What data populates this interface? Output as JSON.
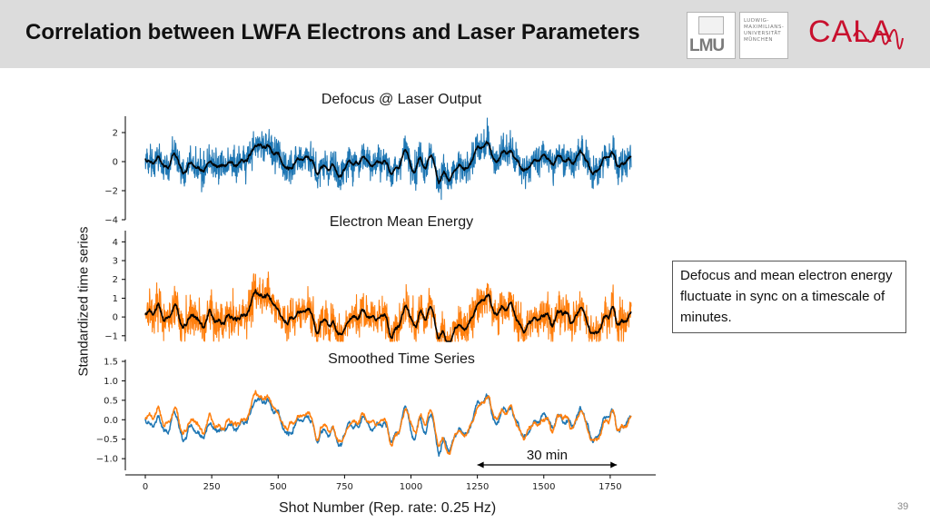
{
  "header": {
    "title": "Correlation between LWFA Electrons and Laser Parameters",
    "logo_lmu_text": "LMU",
    "logo_lmu_words": [
      "LUDWIG-",
      "MAXIMILIANS-",
      "UNIVERSITÄT",
      "MÜNCHEN"
    ],
    "logo_cala_text": "CALA",
    "background": "#dcdcdc"
  },
  "note": {
    "text": "Defocus and mean electron energy fluctuate in sync on a timescale of minutes."
  },
  "page_number": "39",
  "colors": {
    "blue": "#1f77b4",
    "orange": "#ff7f0e",
    "black": "#000000",
    "cala_red": "#c8102e"
  },
  "chart_data": [
    {
      "type": "line",
      "title": "Defocus @ Laser Output",
      "ylim": [
        -4,
        3
      ],
      "yticks": [
        2,
        0,
        -2,
        -4
      ],
      "ytick_labels": [
        "2",
        "0",
        "−2",
        "−4"
      ],
      "xlim": [
        0,
        1830
      ],
      "series": [
        {
          "role": "raw",
          "color": "#1f77b4",
          "mean": -0.2,
          "trend": 0.5,
          "amplitude": 1.6,
          "spread": 1.9
        },
        {
          "role": "smoothed",
          "color": "#000000"
        }
      ]
    },
    {
      "type": "line",
      "title": "Electron Mean Energy",
      "ylim": [
        -1.3,
        4.5
      ],
      "yticks": [
        4,
        3,
        2,
        1,
        0,
        -1
      ],
      "ytick_labels": [
        "4",
        "3",
        "2",
        "1",
        "0",
        "−1"
      ],
      "xlim": [
        0,
        1830
      ],
      "series": [
        {
          "role": "raw",
          "color": "#ff7f0e",
          "mean": 0.0,
          "trend": 0.1,
          "amplitude": 1.3,
          "spread": 1.5
        },
        {
          "role": "smoothed",
          "color": "#000000"
        }
      ]
    },
    {
      "type": "line",
      "title": "Smoothed Time Series",
      "ylim": [
        -1.3,
        1.5
      ],
      "yticks": [
        1.5,
        1.0,
        0.5,
        0.0,
        -0.5,
        -1.0
      ],
      "ytick_labels": [
        "1.5",
        "1.0",
        "0.5",
        "0.0",
        "−0.5",
        "−1.0"
      ],
      "xlim": [
        0,
        1830
      ],
      "xticks": [
        0,
        250,
        500,
        750,
        1000,
        1250,
        1500,
        1750
      ],
      "xtick_labels": [
        "0",
        "250",
        "500",
        "750",
        "1000",
        "1250",
        "1500",
        "1750"
      ],
      "series": [
        {
          "role": "defocus-smoothed",
          "color": "#1f77b4"
        },
        {
          "role": "energy-smoothed",
          "color": "#ff7f0e"
        }
      ],
      "annotation": {
        "label": "30 min",
        "x_start": 1250,
        "x_end": 1775,
        "y": -1.2
      }
    }
  ],
  "axes": {
    "ylabel": "Standardized time series",
    "xlabel": "Shot Number (Rep. rate: 0.25 Hz)"
  }
}
